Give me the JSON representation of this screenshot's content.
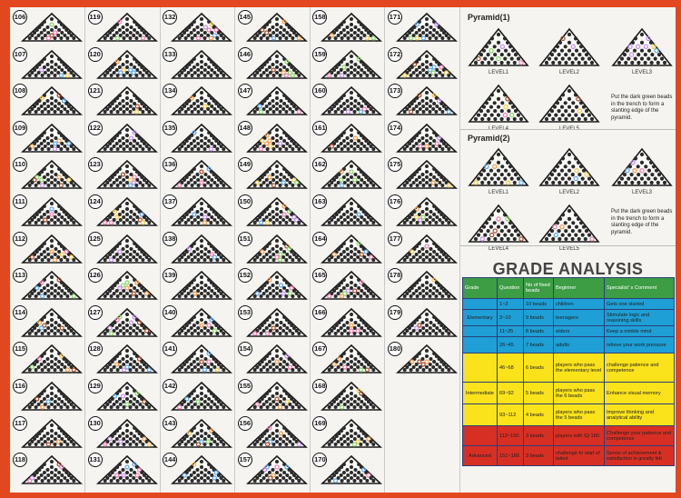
{
  "number_columns": [
    [
      "106",
      "107",
      "108",
      "109",
      "110",
      "111",
      "112",
      "113",
      "114",
      "115",
      "116",
      "117",
      "118"
    ],
    [
      "119",
      "120",
      "121",
      "122",
      "123",
      "124",
      "125",
      "126",
      "127",
      "128",
      "129",
      "130",
      "131"
    ],
    [
      "132",
      "133",
      "134",
      "135",
      "136",
      "137",
      "138",
      "139",
      "140",
      "141",
      "142",
      "143",
      "144"
    ],
    [
      "145",
      "146",
      "147",
      "148",
      "149",
      "150",
      "151",
      "152",
      "153",
      "154",
      "155",
      "156",
      "157"
    ],
    [
      "158",
      "159",
      "160",
      "161",
      "162",
      "163",
      "164",
      "165",
      "166",
      "167",
      "168",
      "169",
      "170"
    ],
    [
      "171",
      "172",
      "173",
      "174",
      "175",
      "176",
      "177",
      "178",
      "179",
      "180"
    ]
  ],
  "bead_colors": [
    "#8bd66a",
    "#c58cf0",
    "#f6c94b",
    "#5ca8f0",
    "#f27bb0",
    "#f59a4a",
    "#a34a2a"
  ],
  "pyramid1": {
    "title": "Pyramid(1)",
    "levels": [
      "LEVEL1",
      "LEVEL2",
      "LEVEL3",
      "LEVEL4",
      "LEVEL5"
    ],
    "note": "Put the dark green beads in the trench to form a slanting edge of the pyramid."
  },
  "pyramid2": {
    "title": "Pyramid(2)",
    "levels": [
      "LEVEL1",
      "LEVEL2",
      "LEVEL3",
      "LEVEL4",
      "LEVEL5"
    ],
    "note": "Put the dark green beads in the trench to form a slanting edge of the pyramid."
  },
  "grade_analysis": {
    "title": "GRADE ANALYSIS",
    "headers": [
      "Grade",
      "Question",
      "No of fixed beads",
      "Beginner",
      "Specialist' s Comment"
    ],
    "rows": [
      {
        "band": "elem",
        "grade": "",
        "question": "1~2",
        "beads": "10 beads",
        "beginner": "children",
        "comment": "Gets one started"
      },
      {
        "band": "elem",
        "grade": "Elementary",
        "question": "3~10",
        "beads": "9 beads",
        "beginner": "teenagers",
        "comment": "Stimulate logic and reasoning skills"
      },
      {
        "band": "elem",
        "grade": "",
        "question": "11~25",
        "beads": "8 beads",
        "beginner": "elders",
        "comment": "Keep a nimble mind"
      },
      {
        "band": "elem",
        "grade": "",
        "question": "26~45",
        "beads": "7 beads",
        "beginner": "adults",
        "comment": "relieve your work pressure"
      },
      {
        "band": "inter",
        "grade": "",
        "question": "46~68",
        "beads": "6 beads",
        "beginner": "players who pass the elementary level",
        "comment": "challenge patience and competence"
      },
      {
        "band": "inter",
        "grade": "Intermediate",
        "question": "69~92",
        "beads": "5 beads",
        "beginner": "players who pass the 6 beads",
        "comment": "Enhance visual memory"
      },
      {
        "band": "inter",
        "grade": "",
        "question": "93~112",
        "beads": "4 beads",
        "beginner": "players who pass the 5 beads",
        "comment": "Improve thinking and analytical ability"
      },
      {
        "band": "adv",
        "grade": "",
        "question": "113~150",
        "beads": "3 beads",
        "beginner": "players with IQ 180",
        "comment": "Challenge your patience and competence"
      },
      {
        "band": "adv",
        "grade": "Advanced",
        "question": "151~180",
        "beads": "3 beads",
        "beginner": "challenge to start of talent",
        "comment": "Sense of achievement & satisfaction is greatly felt"
      }
    ]
  }
}
